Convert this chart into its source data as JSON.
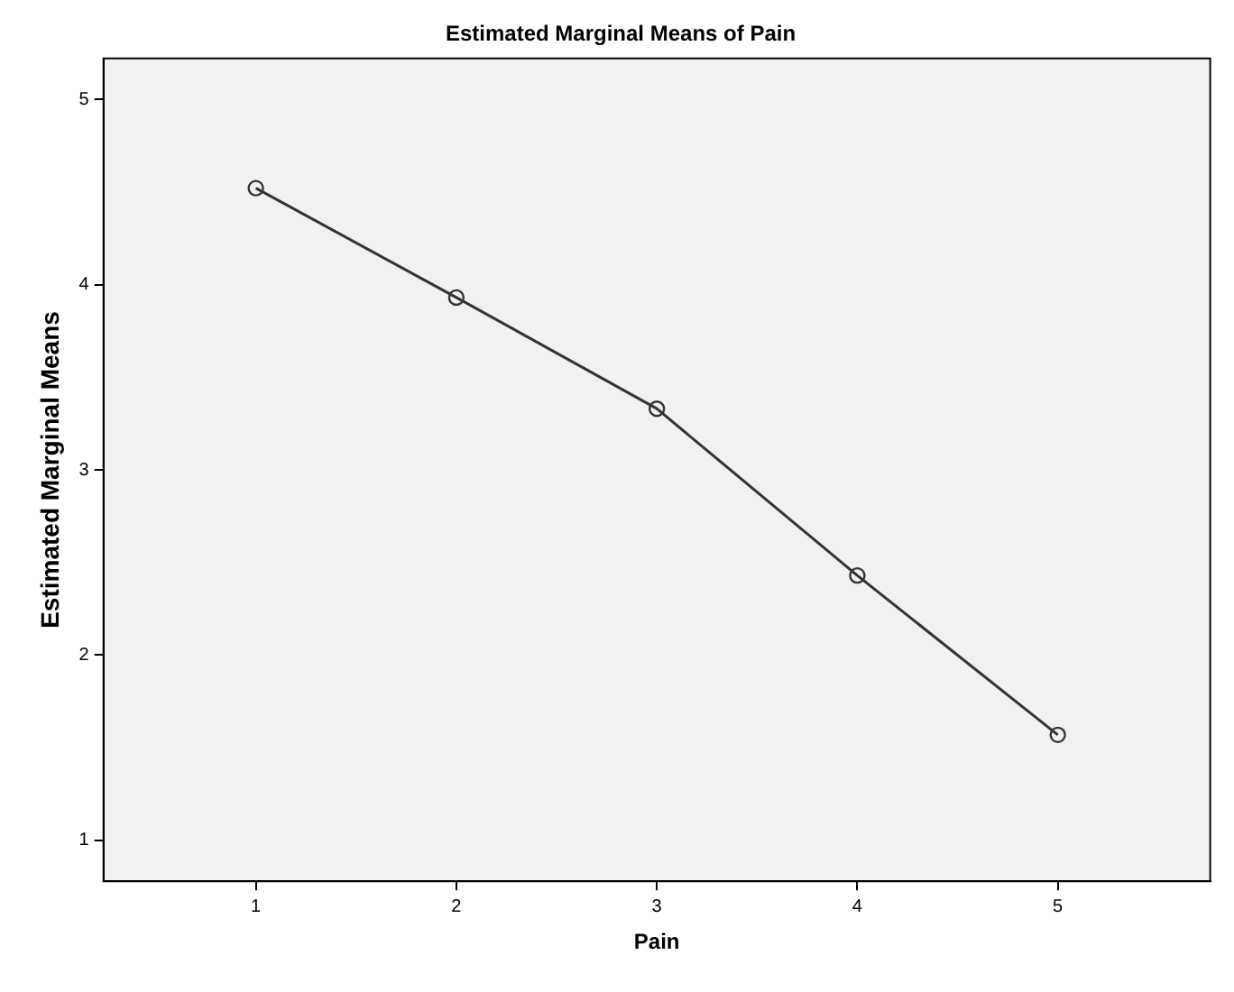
{
  "chart_data": {
    "type": "line",
    "title": "Estimated Marginal Means of Pain",
    "xlabel": "Pain",
    "ylabel": "Estimated Marginal Means",
    "x": [
      1,
      2,
      3,
      4,
      5
    ],
    "series": [
      {
        "color": "#333333",
        "values": [
          4.52,
          3.93,
          3.33,
          2.43,
          1.57
        ]
      }
    ],
    "xlim": [
      0.24,
      5.76
    ],
    "xticks": [
      1,
      2,
      3,
      4,
      5
    ],
    "ylim": [
      0.78,
      5.22
    ],
    "yticks": [
      1,
      2,
      3,
      4,
      5
    ],
    "marker": "circle",
    "line_style": "solid",
    "legend": false
  }
}
